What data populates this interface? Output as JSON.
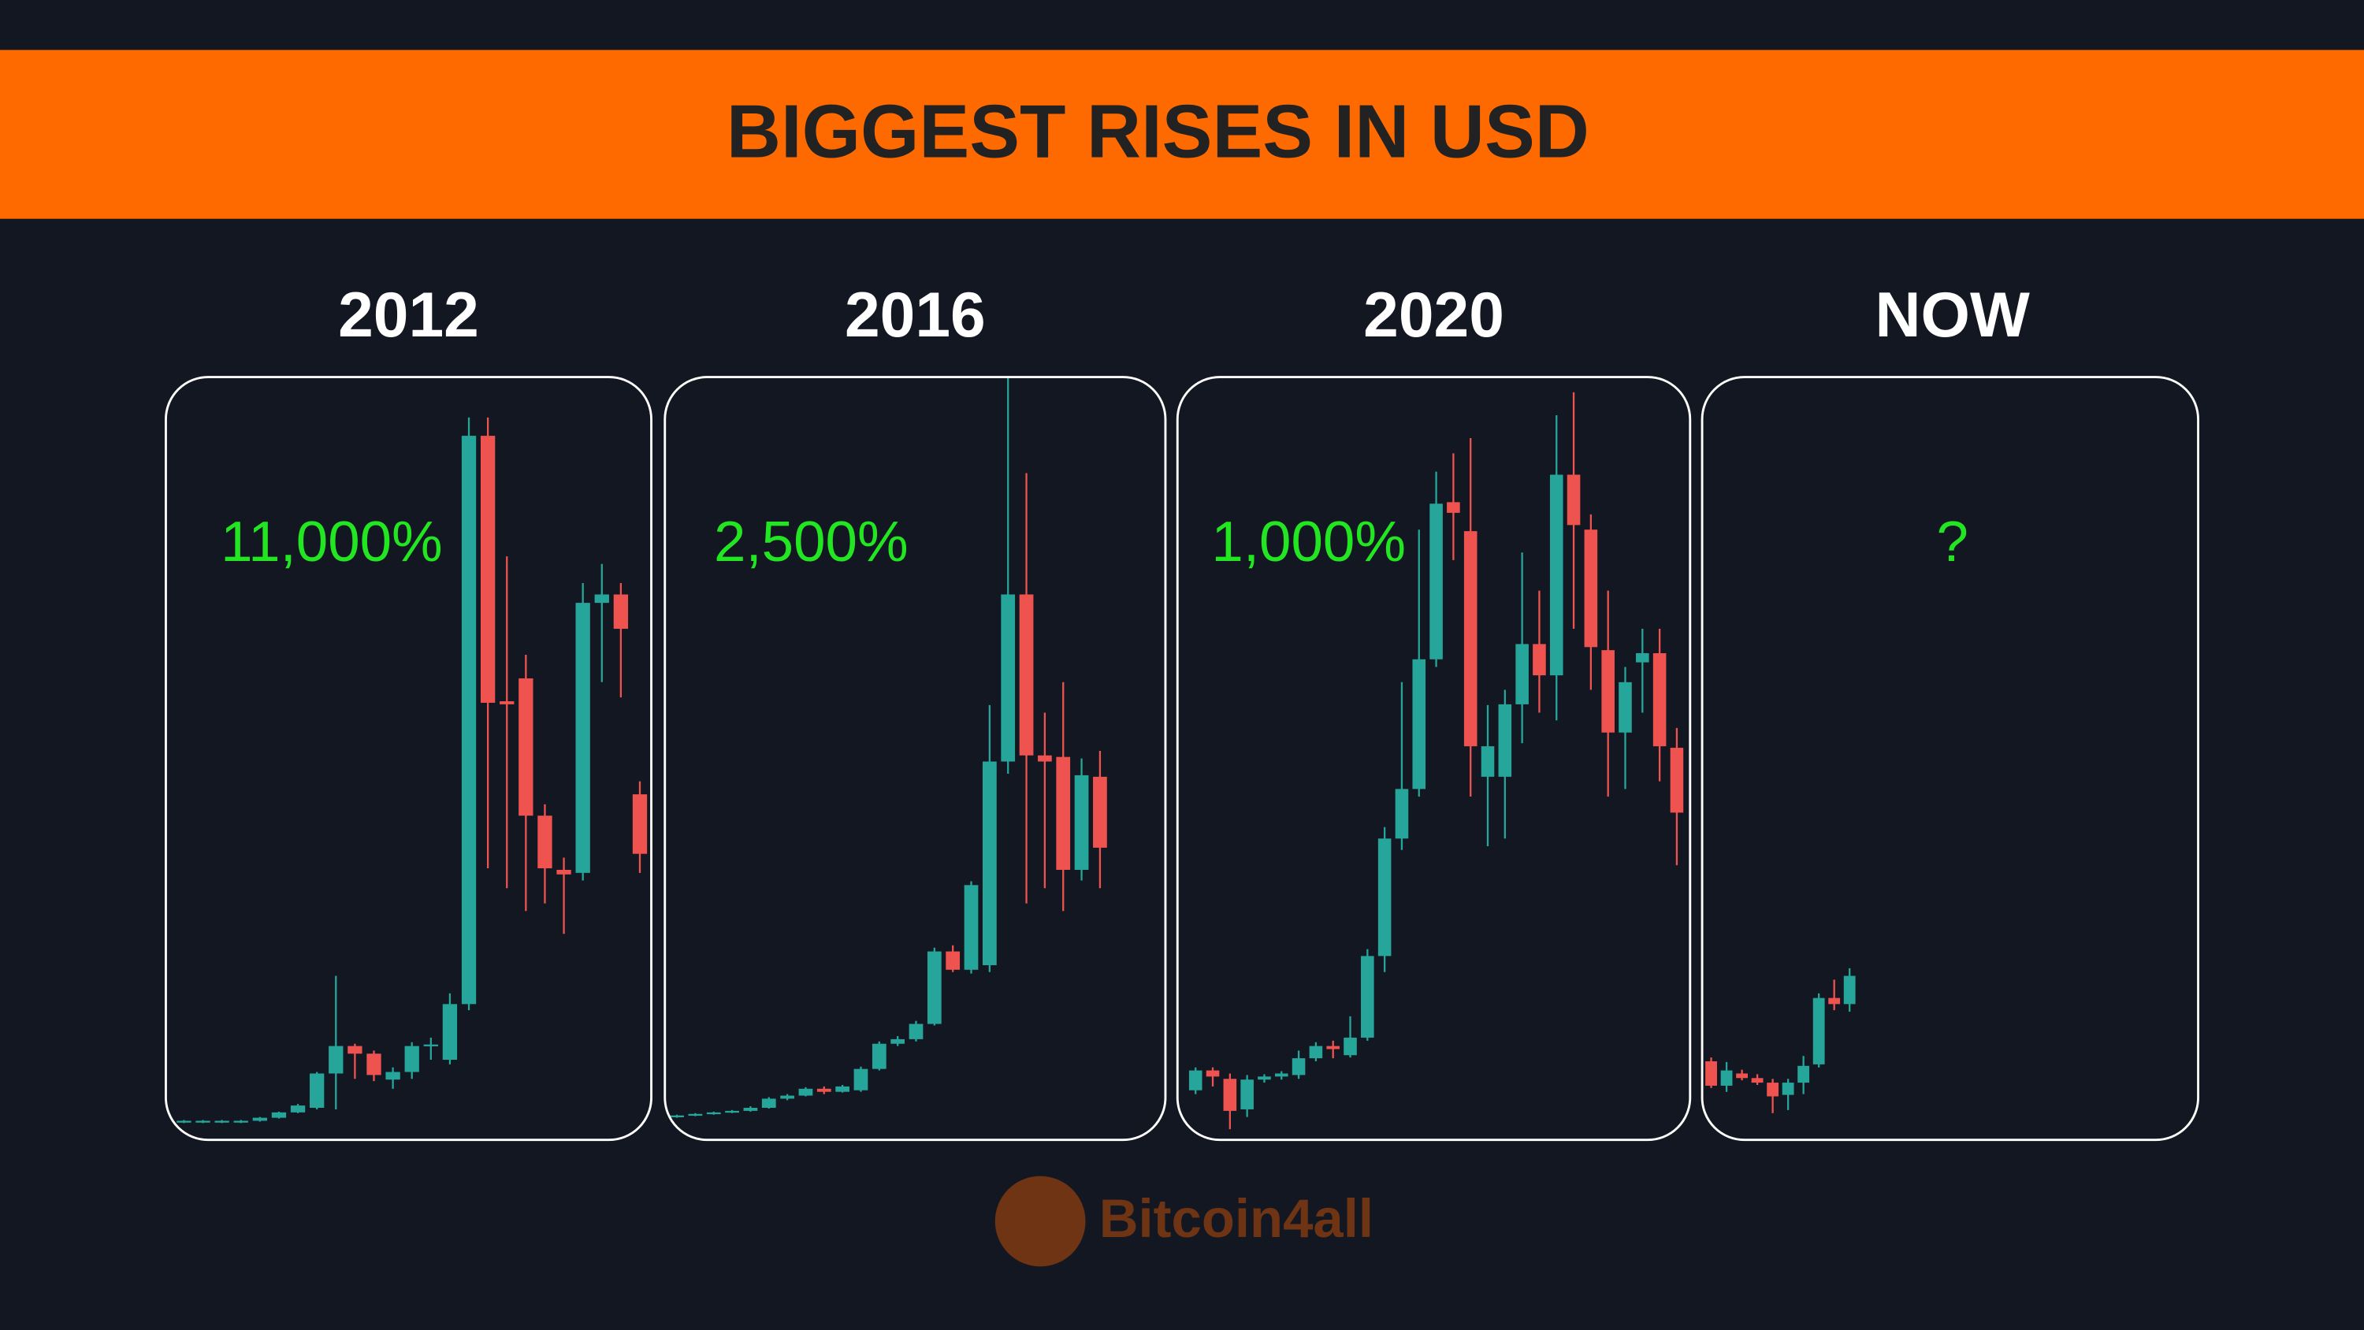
{
  "title": "BIGGEST RISES IN USD",
  "brand": "Bitcoin4all",
  "chart_data": [
    {
      "type": "candlestick",
      "title": "2012",
      "annotation": "11,000%",
      "ylim": [
        0,
        100
      ],
      "up_color": "#26a69a",
      "down_color": "#ef5350",
      "open": [
        2.3,
        2.3,
        2.3,
        2.3,
        2.5,
        2.9,
        3.6,
        4.2,
        8.7,
        12.3,
        11.3,
        7.9,
        8.9,
        12.3,
        10.5,
        17.8,
        92.3,
        57.5,
        60.5,
        42.5,
        35.4,
        35,
        70.4,
        71.5,
        45.3
      ],
      "high": [
        2.6,
        2.6,
        2.6,
        2.6,
        3.0,
        3.7,
        4.7,
        8.9,
        21.5,
        12.6,
        11.7,
        9.5,
        12.8,
        13.4,
        19.2,
        94.7,
        94.7,
        76.5,
        63.6,
        44,
        37,
        73,
        75.5,
        73,
        47
      ],
      "low": [
        2.2,
        2.2,
        2.2,
        2.2,
        2.4,
        2.8,
        3.5,
        4.0,
        4,
        8,
        7.7,
        6.7,
        8,
        10.5,
        9.9,
        17,
        35.6,
        33,
        30,
        31,
        27,
        34,
        60,
        58,
        35
      ],
      "close": [
        2.5,
        2.5,
        2.5,
        2.5,
        2.9,
        3.6,
        4.5,
        8.7,
        12.3,
        11.3,
        8.5,
        8.9,
        12.3,
        12.5,
        17.8,
        92.3,
        57.3,
        57.1,
        42.5,
        35.6,
        34.8,
        70.4,
        71.5,
        67,
        37.5
      ]
    },
    {
      "type": "candlestick",
      "title": "2016",
      "annotation": "2,500%",
      "ylim": [
        0,
        100
      ],
      "up_color": "#26a69a",
      "down_color": "#ef5350",
      "open": [
        3.0,
        3.2,
        3.4,
        3.6,
        3.8,
        4.2,
        5.4,
        5.8,
        6.7,
        6.3,
        6.5,
        9.3,
        12.6,
        13.2,
        15.2,
        24.7,
        22.3,
        22.9,
        49.6,
        71.5,
        50.4,
        50.2,
        35.4,
        47.6
      ],
      "high": [
        3.3,
        3.5,
        3.7,
        3.9,
        4.4,
        5.6,
        6.0,
        6.9,
        7.0,
        7.2,
        9.6,
        12.9,
        13.6,
        15.6,
        25.2,
        25.5,
        33.9,
        57,
        100,
        87.4,
        56,
        60,
        50,
        51
      ],
      "low": [
        2.9,
        3.1,
        3.3,
        3.5,
        3.7,
        4.1,
        5.2,
        5.7,
        6.0,
        6.2,
        6.3,
        9.1,
        12.3,
        12.9,
        15.0,
        22.0,
        21.8,
        22,
        48,
        31,
        33,
        30,
        34,
        33
      ],
      "close": [
        3.2,
        3.4,
        3.6,
        3.8,
        4.2,
        5.4,
        5.8,
        6.7,
        6.3,
        7.0,
        9.3,
        12.6,
        13.2,
        15.2,
        24.7,
        22.3,
        33.4,
        49.6,
        71.5,
        50.4,
        49.6,
        35.4,
        47.8,
        38.3
      ]
    },
    {
      "type": "candlestick",
      "title": "2020",
      "annotation": "1,000%",
      "ylim": [
        0,
        100
      ],
      "up_color": "#26a69a",
      "down_color": "#ef5350",
      "open": [
        6.5,
        9.1,
        8.0,
        4.0,
        7.9,
        8.3,
        8.5,
        10.7,
        12.3,
        11.1,
        13.4,
        24.1,
        39.5,
        46,
        63,
        83.6,
        79.8,
        47.6,
        47.6,
        57.1,
        65,
        60.9,
        87.2,
        80,
        64.2,
        53.4,
        62.6,
        63.8,
        51.4
      ],
      "high": [
        9.5,
        9.5,
        8.7,
        8.5,
        8.6,
        9.0,
        11.7,
        12.8,
        13,
        16.2,
        25,
        41,
        60,
        80,
        87.6,
        90,
        92,
        57,
        59,
        77,
        72,
        95,
        98,
        82,
        72,
        62,
        67,
        67,
        54
      ],
      "low": [
        6,
        7,
        1.4,
        3,
        7.5,
        7.9,
        8,
        10.3,
        10.7,
        10.8,
        13,
        22,
        38,
        45,
        62,
        76,
        45,
        38.5,
        39.5,
        52,
        56,
        55,
        67,
        59,
        45,
        46,
        56,
        47,
        36
      ],
      "close": [
        9.1,
        8.3,
        3.8,
        7.9,
        8.3,
        8.7,
        10.7,
        12.3,
        11.9,
        13.4,
        24.1,
        39.5,
        46,
        63,
        83.4,
        82.2,
        51.6,
        51.6,
        57.1,
        65,
        60.9,
        87.2,
        80.6,
        64.6,
        53.4,
        60,
        63.8,
        51.6,
        42.9
      ]
    },
    {
      "type": "candlestick",
      "title": "NOW",
      "annotation": "?",
      "ylim": [
        0,
        100
      ],
      "up_color": "#26a69a",
      "down_color": "#ef5350",
      "open": [
        10.3,
        7.1,
        8.7,
        8.1,
        7.5,
        5.9,
        7.5,
        9.9,
        18.6,
        17.8
      ],
      "high": [
        10.8,
        10.2,
        9.2,
        8.6,
        8,
        8,
        11,
        19.2,
        21,
        22.5
      ],
      "low": [
        6.8,
        6.3,
        7.8,
        7.2,
        3.5,
        3.9,
        6,
        9.5,
        17,
        16.8
      ],
      "close": [
        7.1,
        9.1,
        8.1,
        7.5,
        5.7,
        7.5,
        9.7,
        18.6,
        17.8,
        21.5
      ]
    }
  ]
}
